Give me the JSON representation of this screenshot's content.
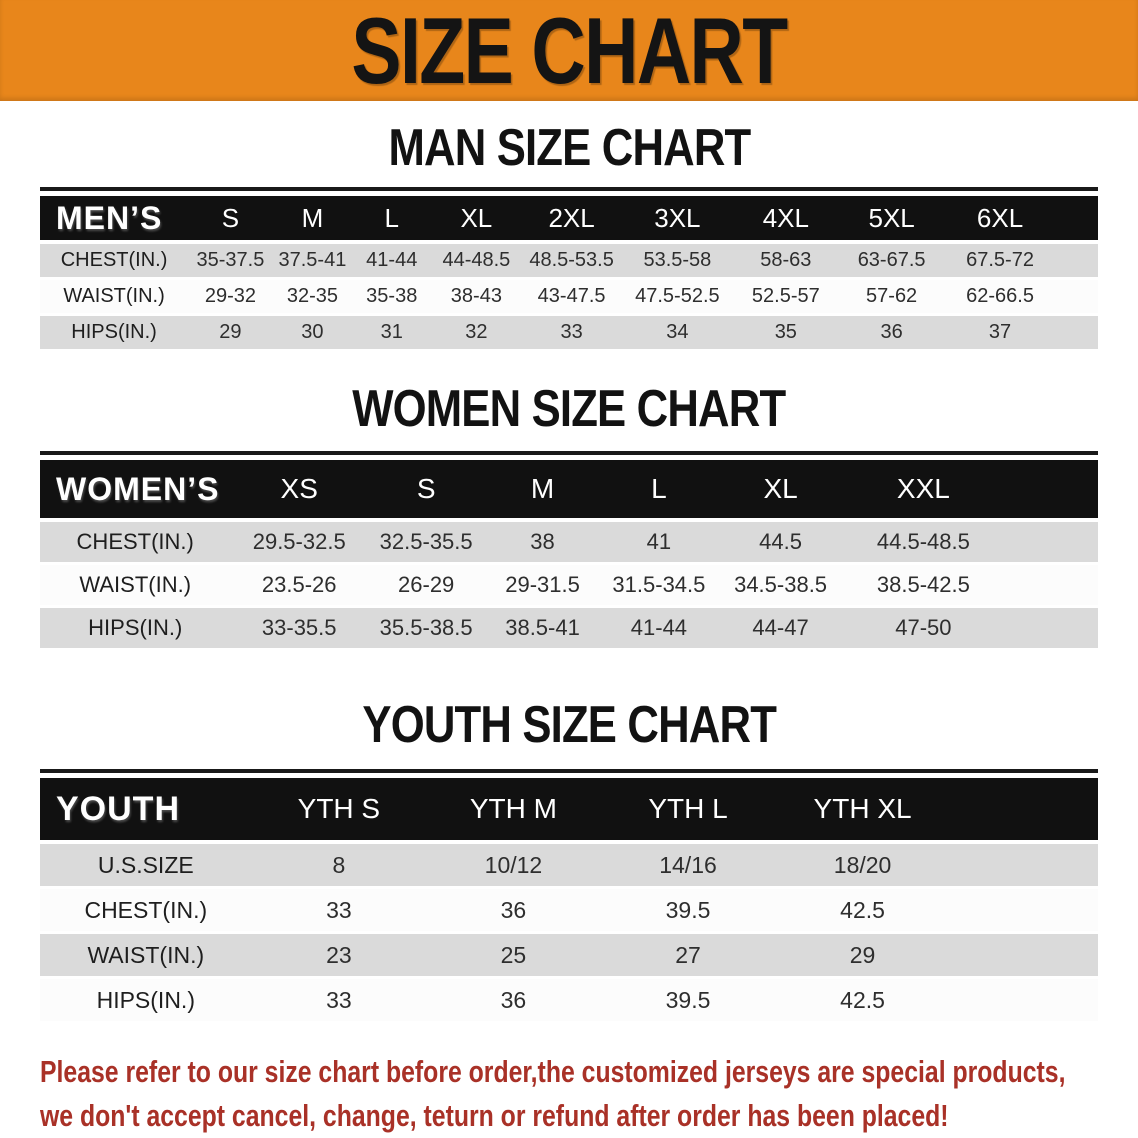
{
  "banner": {
    "title": "SIZE CHART"
  },
  "colors": {
    "banner_bg": "#E8861B",
    "band_bg": "#111111",
    "band_text": "#FFFFFF",
    "row_shade": "#DADADA",
    "row_plain": "#FCFCFC",
    "text_dark": "#1E1E1E",
    "value_text": "#2E2E2E",
    "footer_red": "#A93127"
  },
  "sections": [
    {
      "title": "MAN SIZE CHART",
      "header_label": "MEN’S",
      "columns": [
        "S",
        "M",
        "L",
        "XL",
        "2XL",
        "3XL",
        "4XL",
        "5XL",
        "6XL"
      ],
      "rows": [
        {
          "label": "CHEST(IN.)",
          "values": [
            "35-37.5",
            "37.5-41",
            "41-44",
            "44-48.5",
            "48.5-53.5",
            "53.5-58",
            "58-63",
            "63-67.5",
            "67.5-72"
          ]
        },
        {
          "label": "WAIST(IN.)",
          "values": [
            "29-32",
            "32-35",
            "35-38",
            "38-43",
            "43-47.5",
            "47.5-52.5",
            "52.5-57",
            "57-62",
            "62-66.5"
          ]
        },
        {
          "label": "HIPS(IN.)",
          "values": [
            "29",
            "30",
            "31",
            "32",
            "33",
            "34",
            "35",
            "36",
            "37"
          ]
        }
      ]
    },
    {
      "title": "WOMEN SIZE CHART",
      "header_label": "WOMEN’S",
      "columns": [
        "XS",
        "S",
        "M",
        "L",
        "XL",
        "XXL"
      ],
      "rows": [
        {
          "label": "CHEST(IN.)",
          "values": [
            "29.5-32.5",
            "32.5-35.5",
            "38",
            "41",
            "44.5",
            "44.5-48.5"
          ]
        },
        {
          "label": "WAIST(IN.)",
          "values": [
            "23.5-26",
            "26-29",
            "29-31.5",
            "31.5-34.5",
            "34.5-38.5",
            "38.5-42.5"
          ]
        },
        {
          "label": "HIPS(IN.)",
          "values": [
            "33-35.5",
            "35.5-38.5",
            "38.5-41",
            "41-44",
            "44-47",
            "47-50"
          ]
        }
      ]
    },
    {
      "title": "YOUTH SIZE CHART",
      "header_label": "YOUTH",
      "columns": [
        "YTH S",
        "YTH M",
        "YTH L",
        "YTH XL"
      ],
      "rows": [
        {
          "label": "U.S.SIZE",
          "values": [
            "8",
            "10/12",
            "14/16",
            "18/20"
          ]
        },
        {
          "label": "CHEST(IN.)",
          "values": [
            "33",
            "36",
            "39.5",
            "42.5"
          ]
        },
        {
          "label": "WAIST(IN.)",
          "values": [
            "23",
            "25",
            "27",
            "29"
          ]
        },
        {
          "label": "HIPS(IN.)",
          "values": [
            "33",
            "36",
            "39.5",
            "42.5"
          ]
        }
      ]
    }
  ],
  "footer": {
    "line1": "Please refer to our size chart before order,the customized jerseys are special products,",
    "line2": "we don't accept cancel, change, teturn or refund after order has been placed!"
  }
}
